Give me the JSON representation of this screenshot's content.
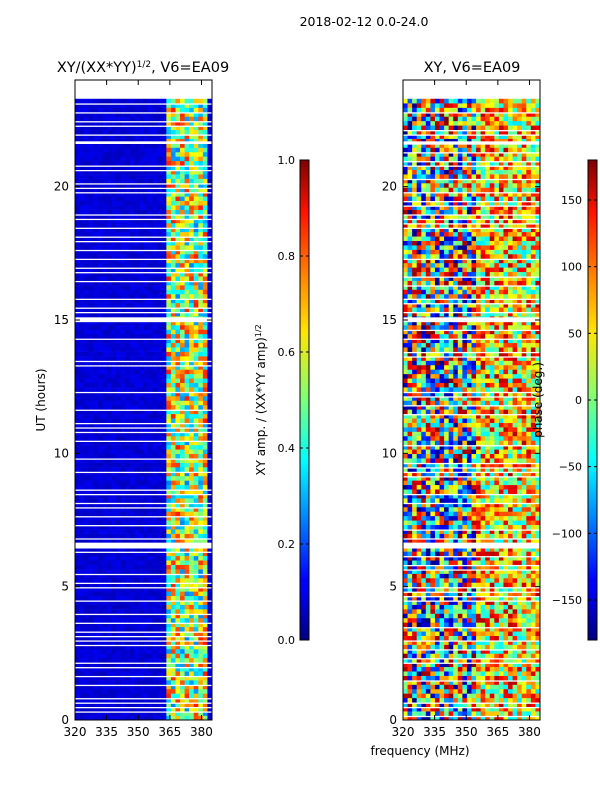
{
  "suptitle": "2018-02-12 0.0-24.0",
  "xlabel": "frequency (MHz)",
  "chart_data": [
    {
      "type": "heatmap",
      "title_main": "XY/(XX*YY)",
      "title_sup": "1/2",
      "title_tail": ", V6=EA09",
      "ylabel": "UT (hours)",
      "xlim": [
        320,
        385
      ],
      "ylim": [
        0,
        24
      ],
      "xticks": [
        320,
        335,
        350,
        365,
        380
      ],
      "yticks": [
        0,
        5,
        10,
        15,
        20
      ],
      "colorbar": {
        "label_main": "XY amp. / (XX*YY amp)",
        "label_sup": "1/2",
        "range": [
          0.0,
          1.0
        ],
        "ticks": [
          "0.0",
          "0.2",
          "0.4",
          "0.6",
          "0.8",
          "1.0"
        ],
        "colormap": "jet"
      },
      "data_coverage_hours": [
        0,
        23.3
      ],
      "gap_bands_hours": [
        [
          6.45,
          6.65
        ],
        [
          14.95,
          15.1
        ],
        [
          21.6,
          21.7
        ]
      ],
      "active_freq_band_MHz": [
        363,
        382
      ]
    },
    {
      "type": "heatmap",
      "title_main": "XY, V6=EA09",
      "title_sup": "",
      "title_tail": "",
      "ylabel": "",
      "xlim": [
        320,
        385
      ],
      "ylim": [
        0,
        24
      ],
      "xticks": [
        320,
        335,
        350,
        365,
        380
      ],
      "yticks": [
        0,
        5,
        10,
        15,
        20
      ],
      "colorbar": {
        "label_main": "phase (deg.)",
        "label_sup": "",
        "range": [
          -180,
          180
        ],
        "ticks": [
          "−150",
          "−100",
          "−50",
          "0",
          "50",
          "100",
          "150"
        ],
        "colormap": "jet"
      },
      "data_coverage_hours": [
        0,
        23.3
      ],
      "gap_bands_hours": [
        [
          6.45,
          6.65
        ],
        [
          14.95,
          15.1
        ],
        [
          21.6,
          21.7
        ]
      ]
    }
  ]
}
